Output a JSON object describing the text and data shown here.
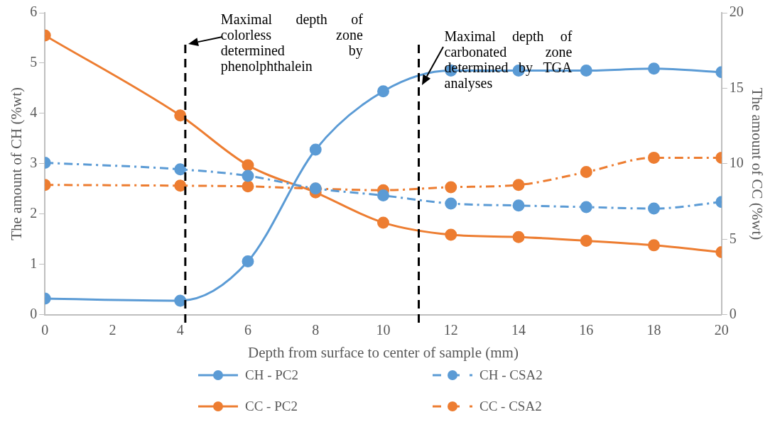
{
  "chart_data": {
    "type": "line",
    "xlabel": "Depth from surface to center of sample (mm)",
    "ylabel": "The amount of CH (%wt)",
    "y2label": "The amount of CC (%wt)",
    "x": [
      0,
      4,
      6,
      8,
      10,
      12,
      14,
      16,
      18,
      20
    ],
    "xlim": [
      0,
      20
    ],
    "xticks": [
      0,
      2,
      4,
      6,
      8,
      10,
      12,
      14,
      16,
      18,
      20
    ],
    "ylim": [
      0,
      6
    ],
    "yticks": [
      0,
      1,
      2,
      3,
      4,
      5,
      6
    ],
    "y2lim": [
      0,
      20
    ],
    "y2ticks": [
      0,
      5,
      10,
      15,
      20
    ],
    "grid": false,
    "legend": "bottom",
    "marker": "circle",
    "series": [
      {
        "name": "CH - PC2",
        "color": "#5b9bd5",
        "line_style": "solid",
        "values": [
          0.32,
          0.28,
          1.06,
          3.28,
          4.44,
          4.85,
          4.85,
          4.85,
          4.89,
          4.82
        ]
      },
      {
        "name": "CH - CSA2",
        "color": "#5b9bd5",
        "line_style": "dashed",
        "values": [
          3.02,
          2.89,
          2.76,
          2.51,
          2.37,
          2.21,
          2.17,
          2.14,
          2.11,
          2.24
        ]
      },
      {
        "name": "CC - PC2",
        "color": "#ed7d31",
        "line_style": "solid",
        "axis": "y2",
        "values": [
          18.5,
          13.2,
          9.9,
          8.1,
          6.1,
          5.3,
          5.15,
          4.9,
          4.6,
          4.15
        ]
      },
      {
        "name": "CC - CSA2",
        "color": "#ed7d31",
        "line_style": "dashed",
        "axis": "y2",
        "values": [
          8.6,
          8.55,
          8.5,
          8.35,
          8.25,
          8.45,
          8.6,
          9.45,
          10.4,
          10.4
        ]
      }
    ],
    "ref_lines": [
      {
        "axis": "x",
        "value": 4.15,
        "label": "Maximal depth of colorless zone determined by phenolphthalein",
        "color": "#000000",
        "line_style": "dashed"
      },
      {
        "axis": "x",
        "value": 11.05,
        "label": "Maximal depth of carbonated zone determined by TGA analyses",
        "color": "#000000",
        "line_style": "dashed"
      }
    ]
  }
}
